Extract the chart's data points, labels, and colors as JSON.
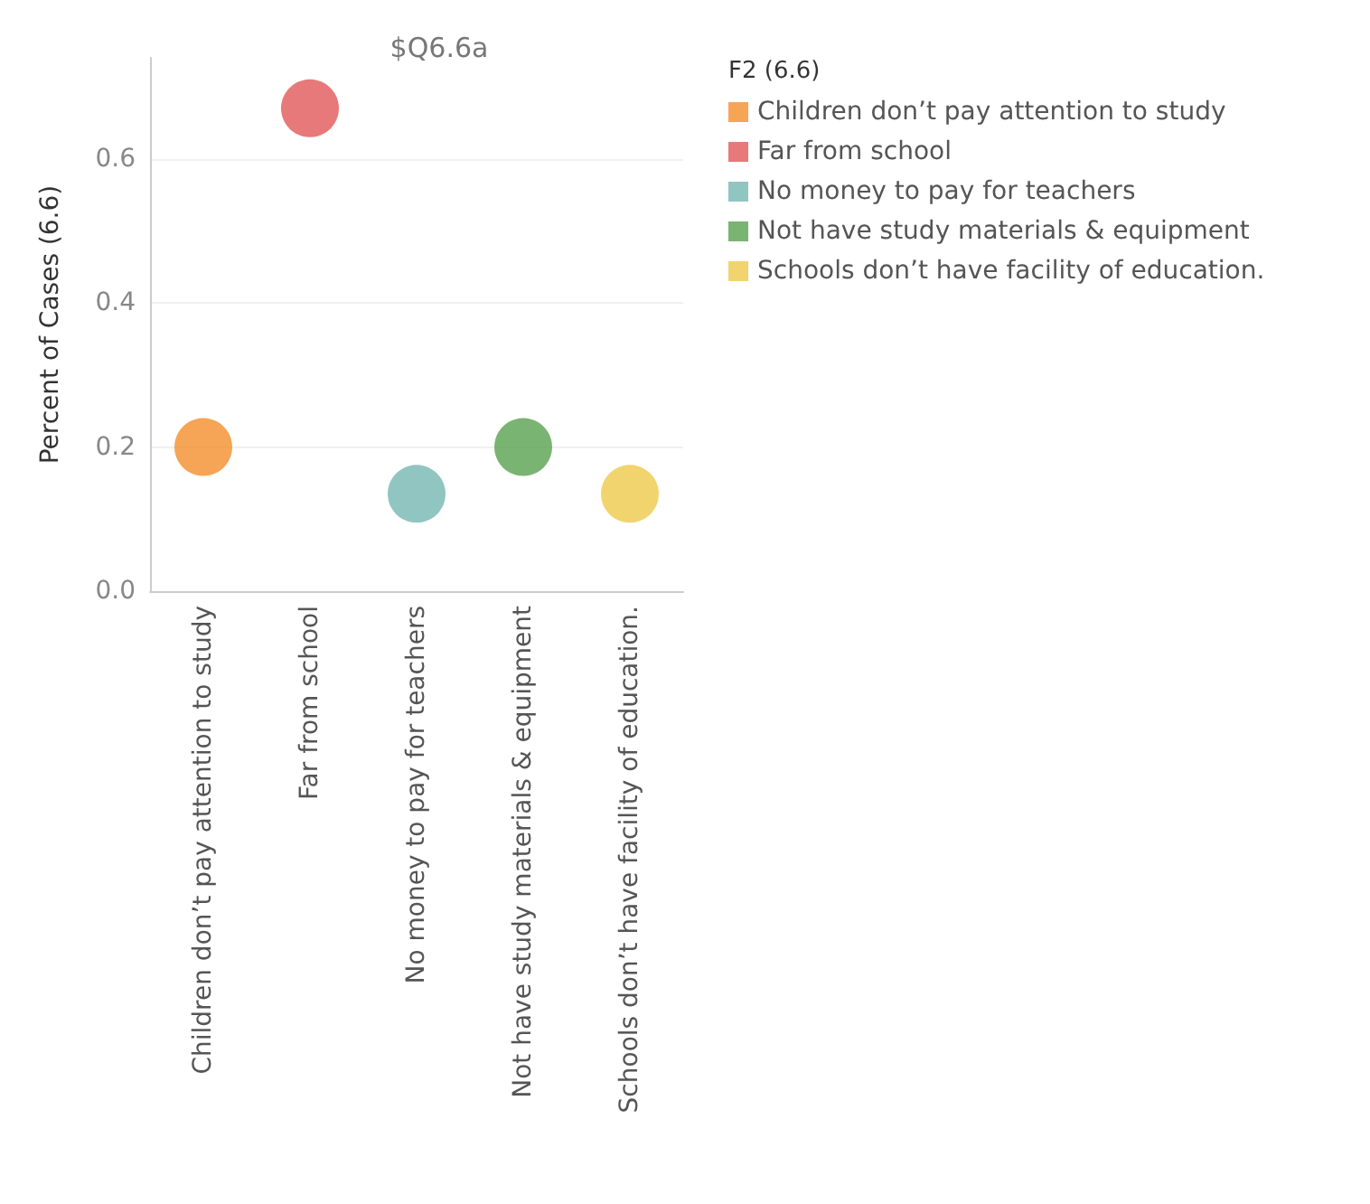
{
  "chart_data": {
    "type": "scatter",
    "title": "$Q6.6a",
    "ylabel": "Percent of Cases (6.6)",
    "legend_title": "F2 (6.6)",
    "categories": [
      "Children don’t pay attention to study",
      "Far from school",
      "No money to pay for teachers",
      "Not have study materials & equipment",
      "Schools don’t have facility of education."
    ],
    "series": [
      {
        "name": "Children don’t pay attention to study",
        "color": "#f28e2b",
        "values": [
          0.2,
          null,
          null,
          null,
          null
        ]
      },
      {
        "name": "Far from school",
        "color": "#e15759",
        "values": [
          null,
          0.67,
          null,
          null,
          null
        ]
      },
      {
        "name": "No money to pay for teachers",
        "color": "#76b7b2",
        "values": [
          null,
          null,
          0.135,
          null,
          null
        ]
      },
      {
        "name": "Not have study materials & equipment",
        "color": "#59a14f",
        "values": [
          null,
          null,
          null,
          0.2,
          null
        ]
      },
      {
        "name": "Schools don’t have facility of education.",
        "color": "#edc948",
        "values": [
          null,
          null,
          null,
          null,
          0.135
        ]
      }
    ],
    "ylim": [
      0,
      0.74
    ],
    "yticks": [
      {
        "value": 0,
        "label": "0.0"
      },
      {
        "value": 0.2,
        "label": "0.2"
      },
      {
        "value": 0.4,
        "label": "0.4"
      },
      {
        "value": 0.6,
        "label": "0.6"
      }
    ],
    "grid": "y",
    "legend": "right",
    "marker": "circle"
  }
}
